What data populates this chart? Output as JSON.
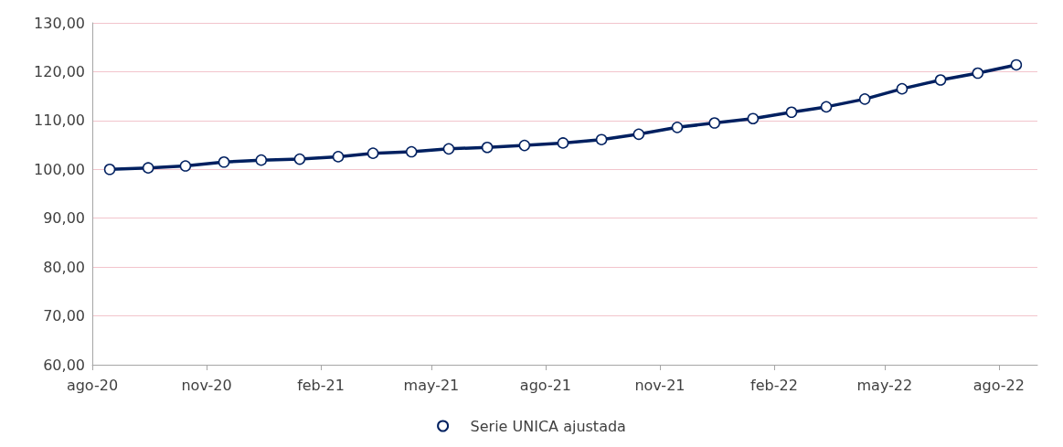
{
  "chart_data": {
    "type": "line",
    "x": [
      "2020-08-15",
      "2020-09-15",
      "2020-10-15",
      "2020-11-15",
      "2020-12-15",
      "2021-01-15",
      "2021-02-15",
      "2021-03-15",
      "2021-04-15",
      "2021-05-15",
      "2021-06-15",
      "2021-07-15",
      "2021-08-15",
      "2021-09-15",
      "2021-10-15",
      "2021-11-15",
      "2021-12-15",
      "2022-01-15",
      "2022-02-15",
      "2022-03-15",
      "2022-04-15",
      "2022-05-15",
      "2022-06-15",
      "2022-07-15",
      "2022-08-15"
    ],
    "series": [
      {
        "name": "Serie UNICA ajustada",
        "color": "#002060",
        "values": [
          100.0,
          100.3,
          100.7,
          101.5,
          101.9,
          102.1,
          102.6,
          103.3,
          103.6,
          104.2,
          104.5,
          104.9,
          105.4,
          106.1,
          107.2,
          108.6,
          109.5,
          110.4,
          111.7,
          112.8,
          114.4,
          116.5,
          118.3,
          119.7,
          121.4
        ]
      }
    ],
    "xlim": [
      "2020-08-01",
      "2022-09-01"
    ],
    "xticks": [
      {
        "value": "2020-08-01",
        "label": "ago-20"
      },
      {
        "value": "2020-11-01",
        "label": "nov-20"
      },
      {
        "value": "2021-02-01",
        "label": "feb-21"
      },
      {
        "value": "2021-05-01",
        "label": "may-21"
      },
      {
        "value": "2021-08-01",
        "label": "ago-21"
      },
      {
        "value": "2021-11-01",
        "label": "nov-21"
      },
      {
        "value": "2022-02-01",
        "label": "feb-22"
      },
      {
        "value": "2022-05-01",
        "label": "may-22"
      },
      {
        "value": "2022-08-01",
        "label": "ago-22"
      }
    ],
    "ylim": [
      60,
      130
    ],
    "yticks": [
      {
        "value": 60,
        "label": "60,00"
      },
      {
        "value": 70,
        "label": "70,00"
      },
      {
        "value": 80,
        "label": "80,00"
      },
      {
        "value": 90,
        "label": "90,00"
      },
      {
        "value": 100,
        "label": "100,00"
      },
      {
        "value": 110,
        "label": "110,00"
      },
      {
        "value": 120,
        "label": "120,00"
      },
      {
        "value": 130,
        "label": "130,00"
      }
    ],
    "grid": "y",
    "legend": "bottom",
    "marker": "circle",
    "line_style": "solid"
  }
}
